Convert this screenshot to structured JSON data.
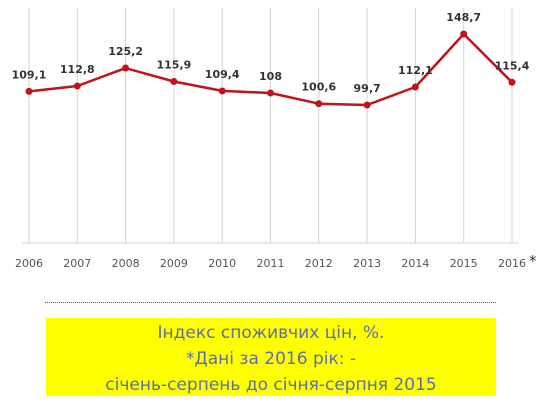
{
  "chart_data": {
    "type": "line",
    "categories": [
      "2006",
      "2007",
      "2008",
      "2009",
      "2010",
      "2011",
      "2012",
      "2013",
      "2014",
      "2015",
      "2016"
    ],
    "series": [
      {
        "values": [
          109.1,
          112.8,
          125.2,
          115.9,
          109.4,
          108,
          100.6,
          99.7,
          112.1,
          148.7,
          115.4
        ],
        "labels": [
          "109,1",
          "112,8",
          "125,2",
          "115,9",
          "109,4",
          "108",
          "100,6",
          "99,7",
          "112,1",
          "148,7",
          "115,4"
        ]
      }
    ],
    "footnote_marker": "*",
    "grid": "vertical",
    "line_color": "#c0141c",
    "grid_color": "#d4d4d4"
  },
  "caption": {
    "line1": "Індекс споживчих цін, %.",
    "line2": "*Дані за 2016 рік: -",
    "line3": "січень-серпень до січня-серпня 2015",
    "background": "#ffff00",
    "text_color": "#5a6fa8"
  }
}
